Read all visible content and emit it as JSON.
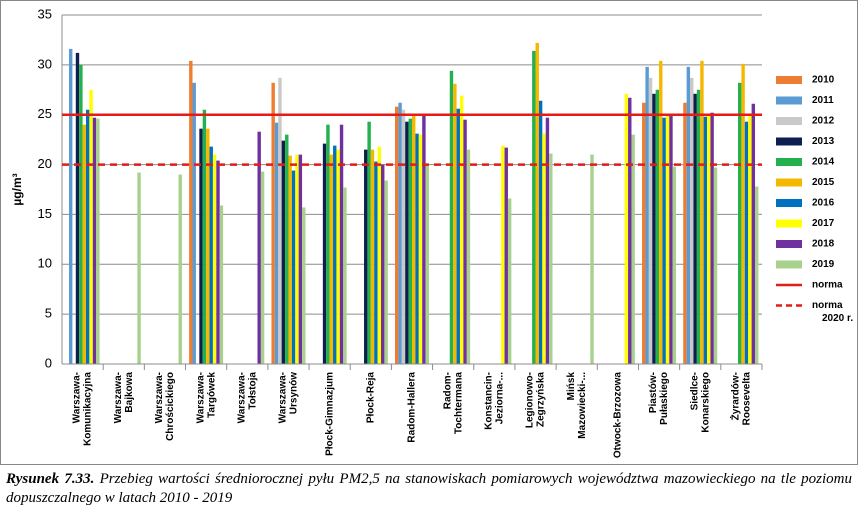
{
  "chart_data": {
    "type": "bar",
    "y_label": "µg/m³",
    "ylim": [
      0,
      35
    ],
    "yticks": [
      0,
      5,
      10,
      15,
      20,
      25,
      30,
      35
    ],
    "grid": true,
    "categories": [
      [
        "Warszawa-",
        "Komunikacyjna"
      ],
      [
        "Warszawa-",
        "Bajkowa"
      ],
      [
        "Warszawa-",
        "Chrościckiego"
      ],
      [
        "Warszawa-",
        "Targówek"
      ],
      [
        "Warszawa-",
        "Tołstoja"
      ],
      [
        "Warszawa-",
        "Ursynów"
      ],
      [
        "Płock-Gimnazjum"
      ],
      [
        "Płock-Reja"
      ],
      [
        "Radom-Hallera"
      ],
      [
        "Radom-",
        "Tochtermana"
      ],
      [
        "Konstancin-",
        "Jeziorna-..."
      ],
      [
        "Legionowo-",
        "Zegrzyńska"
      ],
      [
        "Mińsk",
        "Mazowiecki-..."
      ],
      [
        "Otwock-Brzozowa"
      ],
      [
        "Piastów-",
        "Pułaskiego"
      ],
      [
        "Siedlce-",
        "Konarskiego"
      ],
      [
        "Żyrardów-",
        "Roosevelta"
      ]
    ],
    "series": [
      {
        "name": "2010",
        "color": "#ed7d31",
        "values": [
          null,
          null,
          null,
          30.4,
          null,
          28.2,
          null,
          null,
          25.8,
          null,
          null,
          null,
          null,
          null,
          26.2,
          26.2,
          null
        ]
      },
      {
        "name": "2011",
        "color": "#5b9bd5",
        "values": [
          31.6,
          null,
          null,
          28.2,
          null,
          24.2,
          null,
          null,
          26.2,
          null,
          null,
          null,
          null,
          null,
          29.8,
          29.8,
          null
        ]
      },
      {
        "name": "2012",
        "color": "#c9c9c9",
        "values": [
          null,
          null,
          null,
          null,
          null,
          28.7,
          null,
          null,
          25.5,
          null,
          null,
          null,
          null,
          null,
          28.7,
          28.7,
          null
        ]
      },
      {
        "name": "2013",
        "color": "#0e1f4f",
        "values": [
          31.2,
          null,
          null,
          23.6,
          null,
          22.4,
          22.1,
          21.5,
          24.3,
          null,
          null,
          null,
          null,
          null,
          27.1,
          27.1,
          null
        ]
      },
      {
        "name": "2014",
        "color": "#22b14c",
        "values": [
          30.0,
          null,
          null,
          25.5,
          null,
          23.0,
          24.0,
          24.3,
          24.6,
          29.4,
          null,
          31.4,
          null,
          null,
          27.5,
          27.5,
          28.2
        ]
      },
      {
        "name": "2015",
        "color": "#f5b800",
        "values": [
          24.0,
          null,
          null,
          23.6,
          null,
          20.9,
          21.0,
          21.5,
          25.0,
          28.1,
          null,
          32.2,
          null,
          null,
          30.4,
          30.4,
          30.1
        ]
      },
      {
        "name": "2016",
        "color": "#0070c0",
        "values": [
          25.5,
          null,
          null,
          21.8,
          null,
          19.4,
          21.9,
          20.3,
          23.1,
          25.6,
          null,
          26.4,
          null,
          null,
          24.7,
          24.8,
          24.3
        ]
      },
      {
        "name": "2017",
        "color": "#ffff00",
        "values": [
          27.5,
          null,
          null,
          21.0,
          null,
          21.0,
          21.5,
          21.8,
          23.0,
          26.9,
          21.9,
          23.1,
          null,
          27.1,
          25.0,
          25.0,
          25.0
        ]
      },
      {
        "name": "2018",
        "color": "#7030a0",
        "values": [
          24.7,
          null,
          null,
          20.4,
          23.3,
          21.0,
          24.0,
          20.0,
          25.0,
          24.5,
          21.7,
          24.7,
          null,
          26.7,
          25.1,
          25.2,
          26.1
        ]
      },
      {
        "name": "2019",
        "color": "#a9d18e",
        "values": [
          24.6,
          19.2,
          19.0,
          15.9,
          19.3,
          15.7,
          17.7,
          18.4,
          20.0,
          21.5,
          16.6,
          21.1,
          21.0,
          23.0,
          19.8,
          19.7,
          17.8
        ]
      }
    ],
    "reference_lines": [
      {
        "label": [
          "norma"
        ],
        "value": 25,
        "color": "#e41b17",
        "dashed": false
      },
      {
        "label": [
          "norma",
          "2020 r."
        ],
        "value": 20,
        "color": "#e41b17",
        "dashed": true
      }
    ],
    "caption": {
      "label": "Rysunek 7.33.",
      "text": "Przebieg wartości średniorocznej pyłu PM2,5 na stanowiskach pomiarowych województwa mazowieckiego na tle poziomu dopuszczalnego w latach 2010 - 2019"
    }
  }
}
